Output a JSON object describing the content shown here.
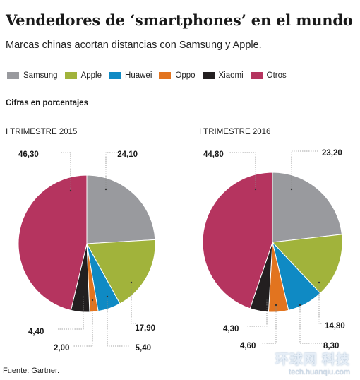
{
  "header": {
    "title": "Vendedores de ‘smartphones’ en el mundo",
    "subtitle": "Marcas chinas acortan distancias con Samsung y Apple."
  },
  "legend": [
    {
      "label": "Samsung",
      "color": "#999a9e"
    },
    {
      "label": "Apple",
      "color": "#a1b33b"
    },
    {
      "label": "Huawei",
      "color": "#0f8ac4"
    },
    {
      "label": "Oppo",
      "color": "#e2741f"
    },
    {
      "label": "Xiaomi",
      "color": "#231f20"
    },
    {
      "label": "Otros",
      "color": "#b5345f"
    }
  ],
  "section_label": "Cifras en porcentajes",
  "source": "Fuente: Gartner.",
  "watermark": {
    "brand": "环球网 科技",
    "url": "tech.huanqiu.com"
  },
  "chart_data": [
    {
      "type": "pie",
      "title": "I TRIMESTRE 2015",
      "categories": [
        "Samsung",
        "Apple",
        "Huawei",
        "Oppo",
        "Xiaomi",
        "Otros"
      ],
      "values": [
        24.1,
        17.9,
        5.4,
        2.0,
        4.4,
        46.3
      ],
      "labels": [
        "24,10",
        "17,90",
        "5,40",
        "2,00",
        "4,40",
        "46,30"
      ]
    },
    {
      "type": "pie",
      "title": "I TRIMESTRE 2016",
      "categories": [
        "Samsung",
        "Apple",
        "Huawei",
        "Oppo",
        "Xiaomi",
        "Otros"
      ],
      "values": [
        23.2,
        14.8,
        8.3,
        4.6,
        4.3,
        44.8
      ],
      "labels": [
        "23,20",
        "14,80",
        "8,30",
        "4,60",
        "4,30",
        "44,80"
      ]
    }
  ]
}
